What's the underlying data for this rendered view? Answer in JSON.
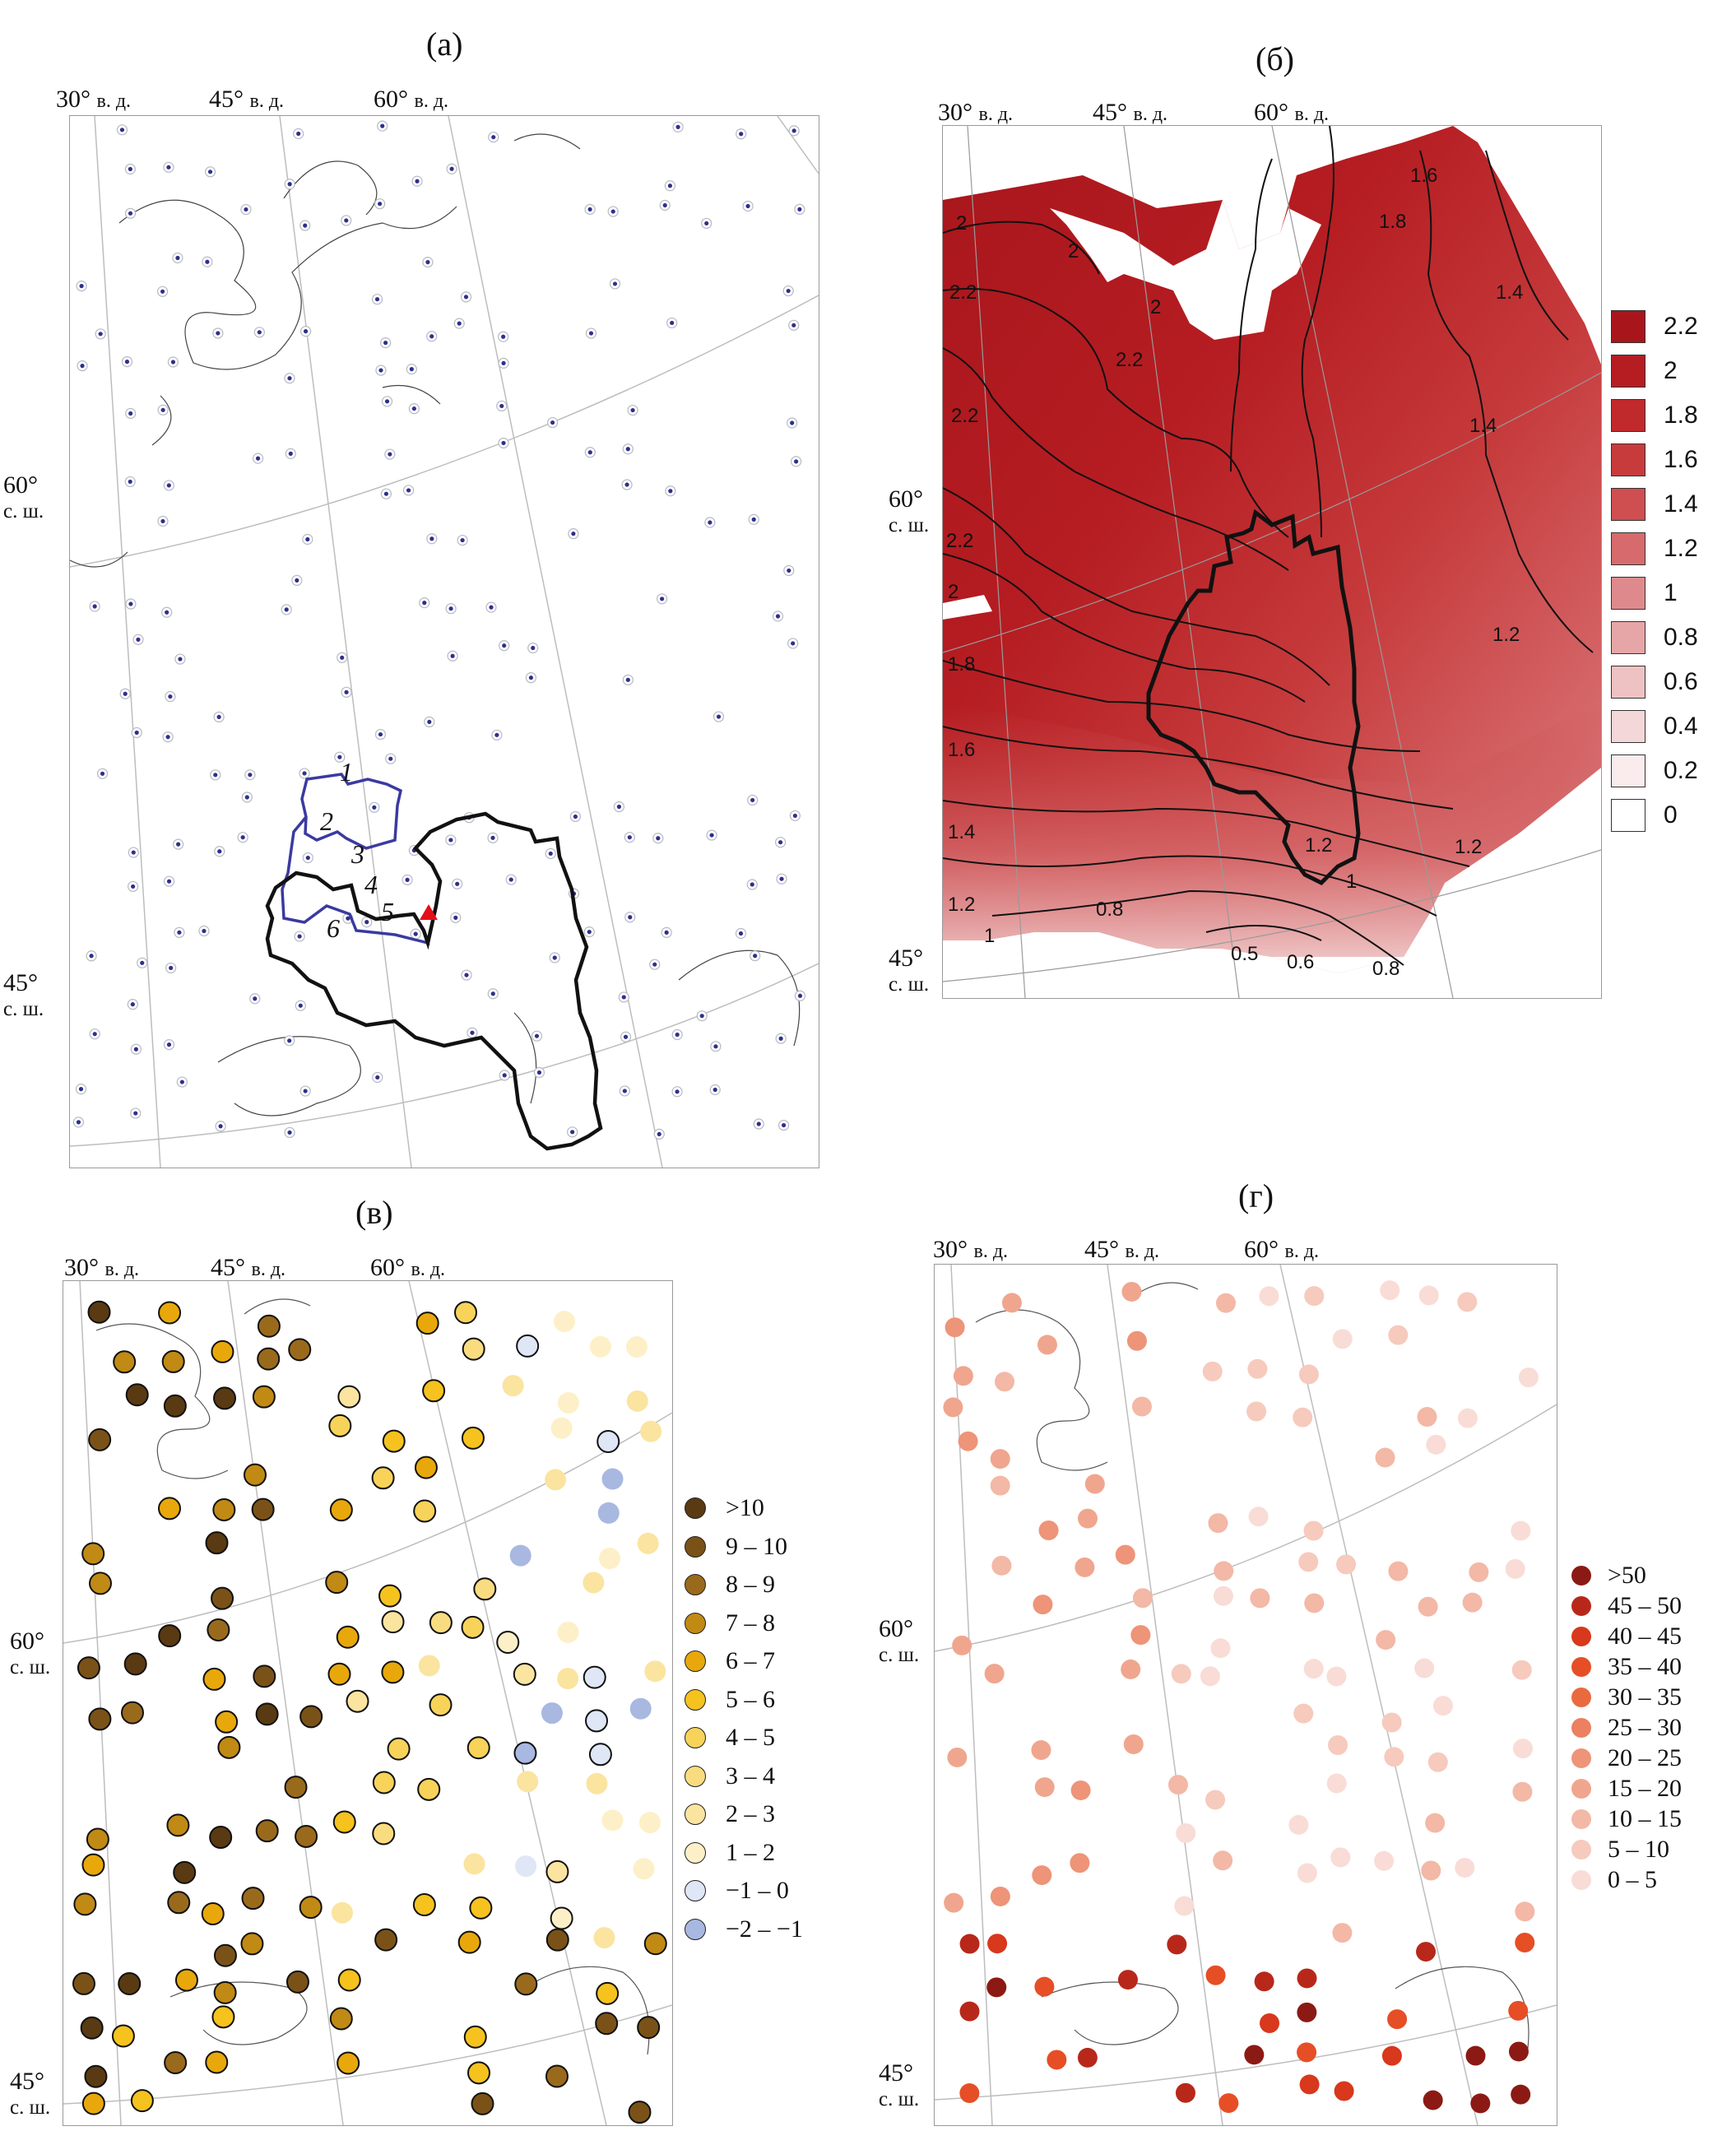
{
  "panels": {
    "a": {
      "letter": "(а)",
      "lon_labels": [
        "30°",
        "45°",
        "60°"
      ],
      "lon_suffix": "в. д.",
      "lat_labels": [
        {
          "deg": "60°",
          "hemi": "с. ш."
        },
        {
          "deg": "45°",
          "hemi": "с. ш."
        }
      ],
      "region_numbers": [
        "1",
        "2",
        "3",
        "4",
        "5",
        "6"
      ]
    },
    "b": {
      "letter": "(б)",
      "lon_labels": [
        "30°",
        "45°",
        "60°"
      ],
      "lon_suffix": "в. д.",
      "lat_labels": [
        {
          "deg": "60°",
          "hemi": "с. ш."
        },
        {
          "deg": "45°",
          "hemi": "с. ш."
        }
      ],
      "contour_labels": [
        "1.6",
        "1.8",
        "2",
        "2",
        "2",
        "1.4",
        "2.2",
        "2.2",
        "1.4",
        "2.2",
        "2.2",
        "2",
        "1.8",
        "1.2",
        "1.6",
        "1.4",
        "1.2",
        "1.2",
        "1.2",
        "1",
        "0.8",
        "1",
        "0.5",
        "0.6",
        "0.8"
      ],
      "legend": [
        {
          "label": "2.2",
          "color": "#a8161c"
        },
        {
          "label": "2",
          "color": "#b51d22"
        },
        {
          "label": "1.8",
          "color": "#c02a2c"
        },
        {
          "label": "1.6",
          "color": "#c83b3c"
        },
        {
          "label": "1.4",
          "color": "#cf4e50"
        },
        {
          "label": "1.2",
          "color": "#d66a6c"
        },
        {
          "label": "1",
          "color": "#de8a8c"
        },
        {
          "label": "0.8",
          "color": "#e6a6a8"
        },
        {
          "label": "0.6",
          "color": "#eec2c3"
        },
        {
          "label": "0.4",
          "color": "#f4d7d8"
        },
        {
          "label": "0.2",
          "color": "#faebec"
        },
        {
          "label": "0",
          "color": "#ffffff"
        }
      ]
    },
    "c": {
      "letter": "(в)",
      "lon_labels": [
        "30°",
        "45°",
        "60°"
      ],
      "lon_suffix": "в. д.",
      "lat_labels": [
        {
          "deg": "60°",
          "hemi": "с. ш."
        },
        {
          "deg": "45°",
          "hemi": "с. ш."
        }
      ],
      "legend": [
        {
          "label": ">10",
          "color": "#5a3a12"
        },
        {
          "label": "9 – 10",
          "color": "#7a5218"
        },
        {
          "label": "8 – 9",
          "color": "#9a6a1c"
        },
        {
          "label": "7 – 8",
          "color": "#c08a14"
        },
        {
          "label": "6 – 7",
          "color": "#e8a80c"
        },
        {
          "label": "5 – 6",
          "color": "#f5c21e"
        },
        {
          "label": "4 – 5",
          "color": "#f8d35a"
        },
        {
          "label": "3 – 4",
          "color": "#fadc80"
        },
        {
          "label": "2 – 3",
          "color": "#fbe4a0"
        },
        {
          "label": "1 – 2",
          "color": "#fdf0c8"
        },
        {
          "label": "−1 – 0",
          "color": "#dfe6f6"
        },
        {
          "label": "−2 – −1",
          "color": "#a8b8e0"
        }
      ]
    },
    "d": {
      "letter": "(г)",
      "lon_labels": [
        "30°",
        "45°",
        "60°"
      ],
      "lon_suffix": "в. д.",
      "lat_labels": [
        {
          "deg": "60°",
          "hemi": "с. ш."
        },
        {
          "deg": "45°",
          "hemi": "с. ш."
        }
      ],
      "legend": [
        {
          "label": ">50",
          "color": "#8c1a14"
        },
        {
          "label": "45  – 50",
          "color": "#b8281a"
        },
        {
          "label": "40 – 45",
          "color": "#d8381c"
        },
        {
          "label": "35 – 40",
          "color": "#e64e26"
        },
        {
          "label": "30 – 35",
          "color": "#ea6a40"
        },
        {
          "label": "25 – 30",
          "color": "#ec8060"
        },
        {
          "label": "20 – 25",
          "color": "#ee9478"
        },
        {
          "label": "15 – 20",
          "color": "#f0a68e"
        },
        {
          "label": "10 – 15",
          "color": "#f3b8a6"
        },
        {
          "label": "5 – 10",
          "color": "#f6cabd"
        },
        {
          "label": "0 – 5",
          "color": "#f9dcd6"
        }
      ]
    }
  }
}
